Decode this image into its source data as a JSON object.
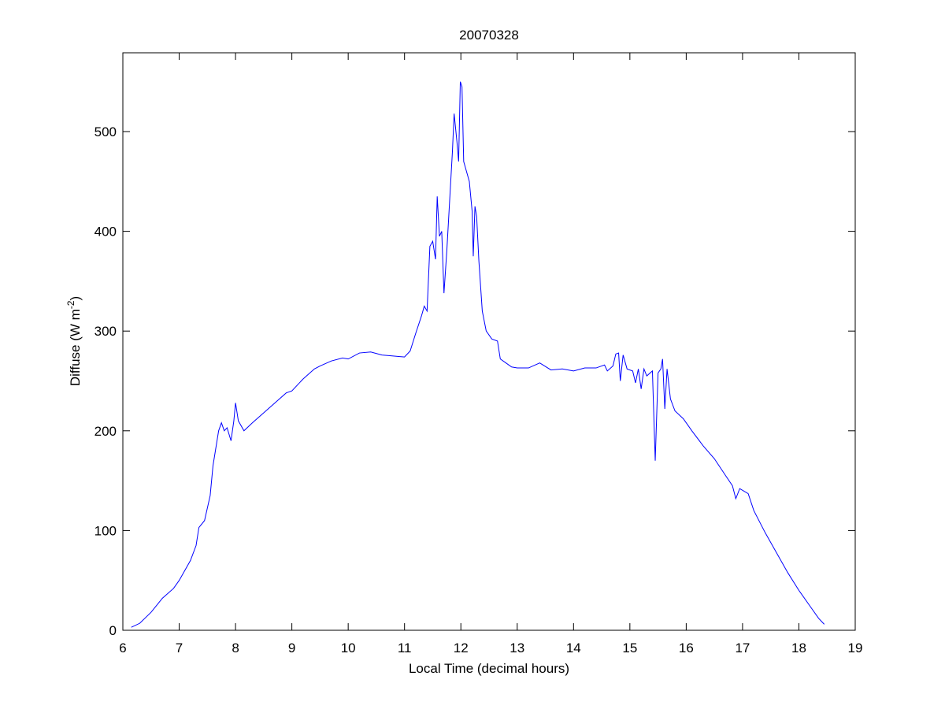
{
  "chart_data": {
    "type": "line",
    "title": "20070328",
    "xlabel": "Local Time (decimal hours)",
    "ylabel": {
      "text": "Diffuse (W m",
      "superscript": "-2",
      "suffix": ")"
    },
    "x": [
      6.15,
      6.3,
      6.5,
      6.7,
      6.9,
      7.0,
      7.2,
      7.3,
      7.35,
      7.45,
      7.55,
      7.6,
      7.7,
      7.75,
      7.8,
      7.85,
      7.92,
      7.97,
      8.0,
      8.05,
      8.15,
      8.3,
      8.5,
      8.7,
      8.9,
      9.0,
      9.2,
      9.4,
      9.5,
      9.7,
      9.9,
      10.0,
      10.2,
      10.4,
      10.6,
      10.8,
      11.0,
      11.1,
      11.2,
      11.3,
      11.35,
      11.4,
      11.45,
      11.5,
      11.55,
      11.58,
      11.62,
      11.66,
      11.7,
      11.75,
      11.8,
      11.85,
      11.88,
      11.93,
      11.96,
      11.99,
      12.02,
      12.05,
      12.1,
      12.15,
      12.2,
      12.22,
      12.25,
      12.28,
      12.32,
      12.38,
      12.45,
      12.55,
      12.65,
      12.7,
      12.8,
      12.9,
      13.0,
      13.2,
      13.4,
      13.6,
      13.8,
      14.0,
      14.2,
      14.4,
      14.55,
      14.6,
      14.7,
      14.75,
      14.8,
      14.83,
      14.88,
      14.95,
      15.05,
      15.1,
      15.15,
      15.2,
      15.25,
      15.3,
      15.4,
      15.45,
      15.5,
      15.55,
      15.58,
      15.62,
      15.66,
      15.72,
      15.8,
      15.95,
      16.1,
      16.3,
      16.5,
      16.7,
      16.82,
      16.88,
      16.95,
      17.1,
      17.2,
      17.4,
      17.6,
      17.8,
      18.0,
      18.2,
      18.35,
      18.45
    ],
    "series": [
      {
        "color": "#0000ff",
        "values": [
          3,
          7,
          18,
          32,
          42,
          50,
          70,
          85,
          103,
          110,
          135,
          165,
          200,
          208,
          200,
          203,
          190,
          210,
          228,
          210,
          200,
          208,
          218,
          228,
          238,
          240,
          252,
          262,
          265,
          270,
          273,
          272,
          278,
          279,
          276,
          275,
          274,
          280,
          298,
          315,
          325,
          320,
          385,
          390,
          372,
          435,
          395,
          400,
          338,
          380,
          430,
          480,
          518,
          490,
          470,
          550,
          545,
          470,
          460,
          450,
          420,
          375,
          425,
          415,
          370,
          320,
          300,
          292,
          290,
          272,
          268,
          264,
          263,
          263,
          268,
          261,
          262,
          260,
          263,
          263,
          266,
          260,
          265,
          277,
          278,
          250,
          276,
          262,
          260,
          248,
          262,
          242,
          262,
          255,
          260,
          170,
          258,
          262,
          272,
          222,
          262,
          232,
          220,
          212,
          200,
          185,
          172,
          155,
          145,
          132,
          142,
          137,
          120,
          98,
          78,
          58,
          40,
          24,
          12,
          6
        ]
      }
    ],
    "xlim": [
      6,
      19
    ],
    "ylim": [
      0,
      579
    ],
    "xticks": [
      6,
      7,
      8,
      9,
      10,
      11,
      12,
      13,
      14,
      15,
      16,
      17,
      18,
      19
    ],
    "yticks": [
      0,
      100,
      200,
      300,
      400,
      500
    ],
    "grid": false
  }
}
